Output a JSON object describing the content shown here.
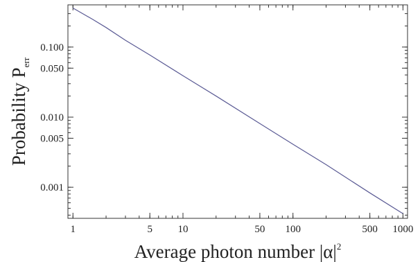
{
  "chart_data": {
    "type": "line",
    "x_scale": "log",
    "y_scale": "log",
    "xlim": [
      0.9,
      1100
    ],
    "ylim": [
      0.00036,
      0.4
    ],
    "xlabel": {
      "main": "Average photon number |α|",
      "sup": "2"
    },
    "ylabel": {
      "main": "Probability P",
      "sub": "err"
    },
    "x_ticks": [
      {
        "value": 1,
        "label": "1"
      },
      {
        "value": 5,
        "label": "5"
      },
      {
        "value": 10,
        "label": "10"
      },
      {
        "value": 50,
        "label": "50"
      },
      {
        "value": 100,
        "label": "100"
      },
      {
        "value": 500,
        "label": "500"
      },
      {
        "value": 1000,
        "label": "1000"
      }
    ],
    "y_ticks": [
      {
        "value": 0.1,
        "label": "0.100"
      },
      {
        "value": 0.05,
        "label": "0.050"
      },
      {
        "value": 0.01,
        "label": "0.010"
      },
      {
        "value": 0.005,
        "label": "0.005"
      },
      {
        "value": 0.001,
        "label": "0.001"
      }
    ],
    "series": [
      {
        "color": "#5a5a94",
        "x": [
          1,
          1.5,
          2,
          3,
          5,
          10,
          20,
          50,
          100,
          200,
          500,
          1000
        ],
        "y": [
          0.36,
          0.25,
          0.19,
          0.125,
          0.077,
          0.039,
          0.02,
          0.0081,
          0.0041,
          0.0021,
          0.00083,
          0.00042
        ]
      }
    ],
    "grid": false
  }
}
